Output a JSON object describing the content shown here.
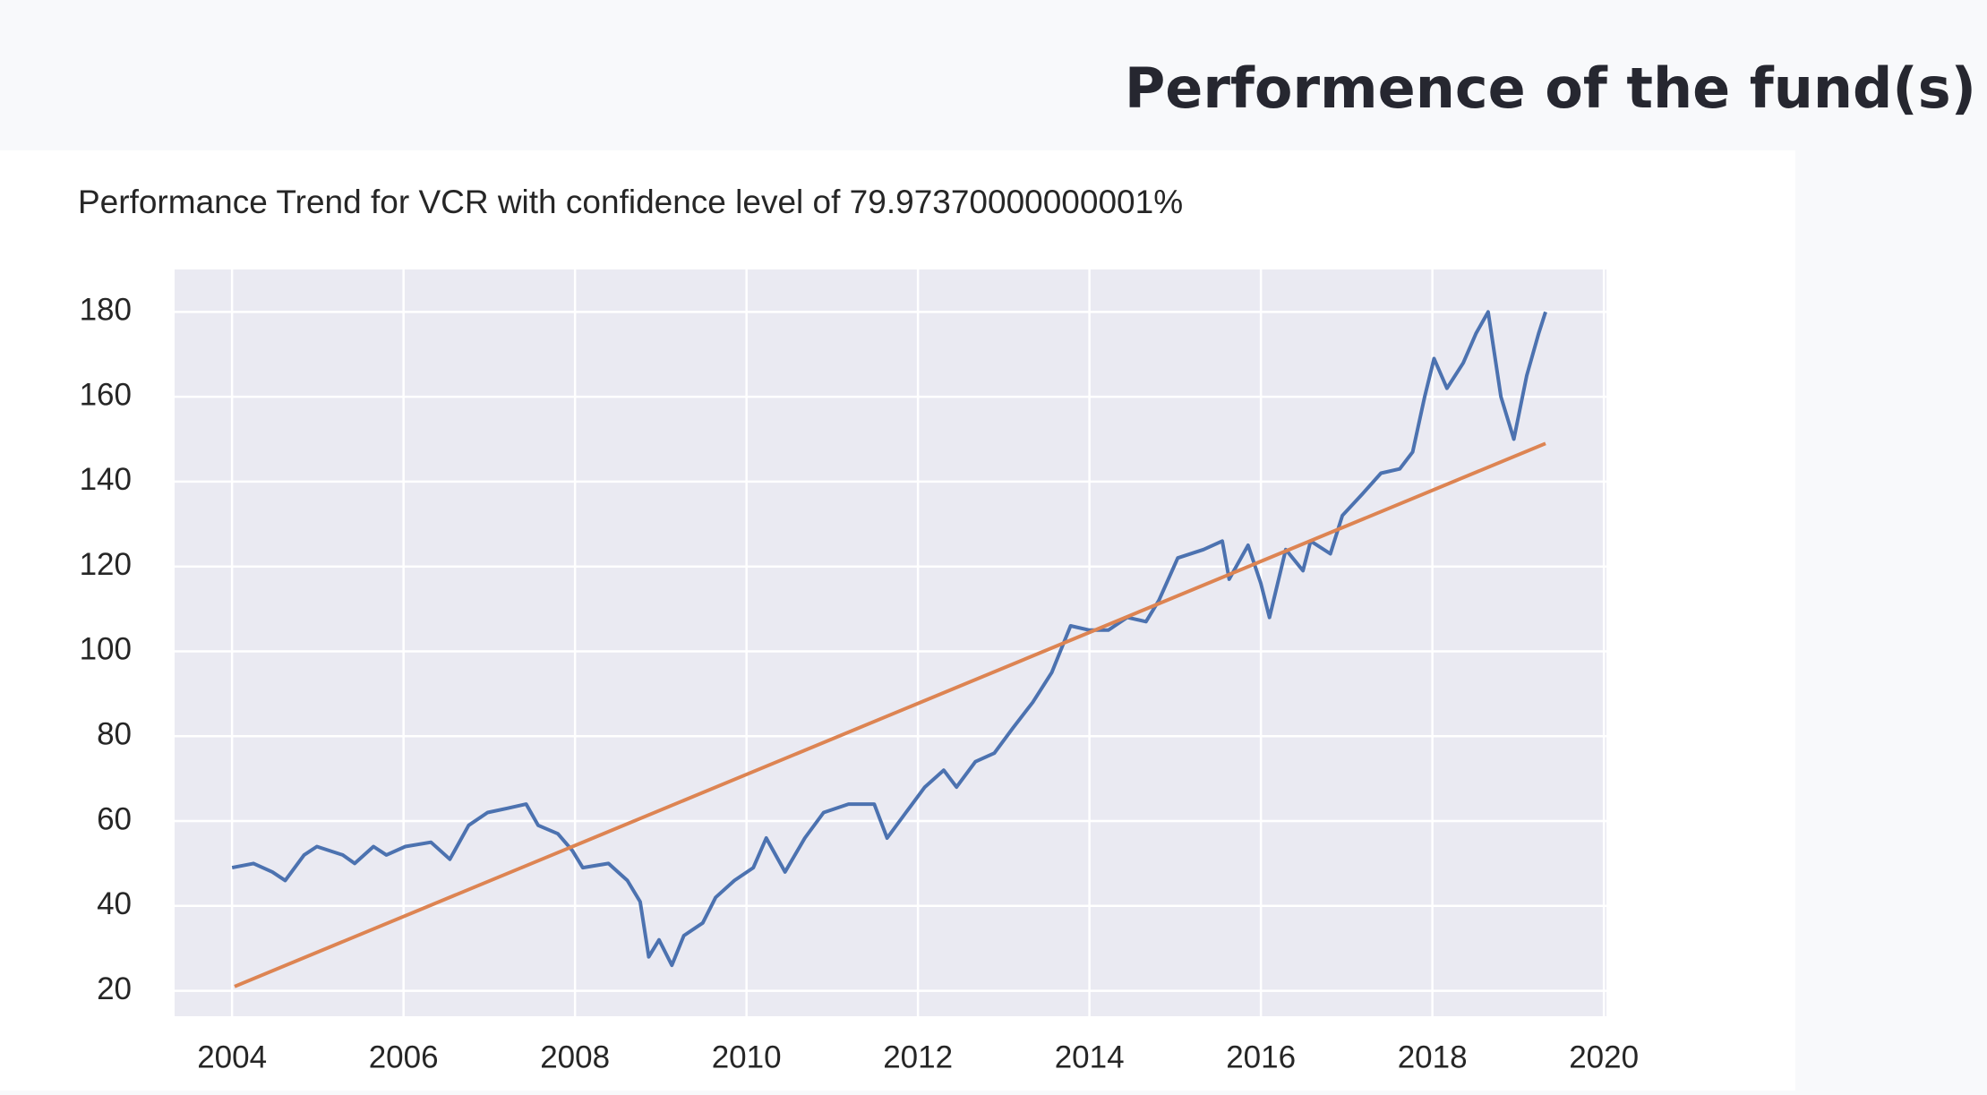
{
  "page_title": "Performence of the fund(s)",
  "chart_data": {
    "type": "line",
    "title": "Performance Trend for VCR with confidence level of 79.97370000000001%",
    "xlim": [
      2003.33,
      2020.03
    ],
    "ylim": [
      14,
      190
    ],
    "xticks": [
      2004,
      2006,
      2008,
      2010,
      2012,
      2014,
      2016,
      2018,
      2020
    ],
    "yticks": [
      20,
      40,
      60,
      80,
      100,
      120,
      140,
      160,
      180
    ],
    "grid": true,
    "series": [
      {
        "color": "#4c72b0",
        "x": [
          2004.0,
          2004.25,
          2004.47,
          2004.62,
          2004.84,
          2004.99,
          2005.29,
          2005.43,
          2005.65,
          2005.8,
          2006.02,
          2006.32,
          2006.54,
          2006.76,
          2006.98,
          2007.21,
          2007.43,
          2007.57,
          2007.8,
          2007.97,
          2008.09,
          2008.39,
          2008.61,
          2008.76,
          2008.86,
          2008.98,
          2009.13,
          2009.27,
          2009.49,
          2009.64,
          2009.86,
          2010.08,
          2010.23,
          2010.45,
          2010.68,
          2010.9,
          2011.19,
          2011.49,
          2011.64,
          2011.86,
          2012.08,
          2012.3,
          2012.45,
          2012.67,
          2012.89,
          2013.11,
          2013.34,
          2013.56,
          2013.78,
          2014.0,
          2014.22,
          2014.44,
          2014.66,
          2014.81,
          2015.03,
          2015.33,
          2015.55,
          2015.63,
          2015.85,
          2016.0,
          2016.1,
          2016.29,
          2016.49,
          2016.58,
          2016.81,
          2016.95,
          2017.18,
          2017.4,
          2017.62,
          2017.77,
          2017.91,
          2018.02,
          2018.17,
          2018.36,
          2018.51,
          2018.65,
          2018.8,
          2018.95,
          2019.1,
          2019.24,
          2019.32
        ],
        "values": [
          49,
          50,
          48,
          46,
          52,
          54,
          52,
          50,
          54,
          52,
          54,
          55,
          51,
          59,
          62,
          63,
          64,
          59,
          57,
          53,
          49,
          50,
          46,
          41,
          28,
          32,
          26,
          33,
          36,
          42,
          46,
          49,
          56,
          48,
          56,
          62,
          64,
          64,
          56,
          62,
          68,
          72,
          68,
          74,
          76,
          82,
          88,
          95,
          106,
          105,
          105,
          108,
          107,
          112,
          122,
          124,
          126,
          117,
          125,
          116,
          108,
          124,
          119,
          126,
          123,
          132,
          137,
          142,
          143,
          147,
          160,
          169,
          162,
          168,
          175,
          180,
          160,
          150,
          165,
          175,
          180
        ]
      },
      {
        "color": "#dd8452",
        "x": [
          2004.03,
          2019.32
        ],
        "values": [
          21,
          149
        ]
      }
    ]
  }
}
